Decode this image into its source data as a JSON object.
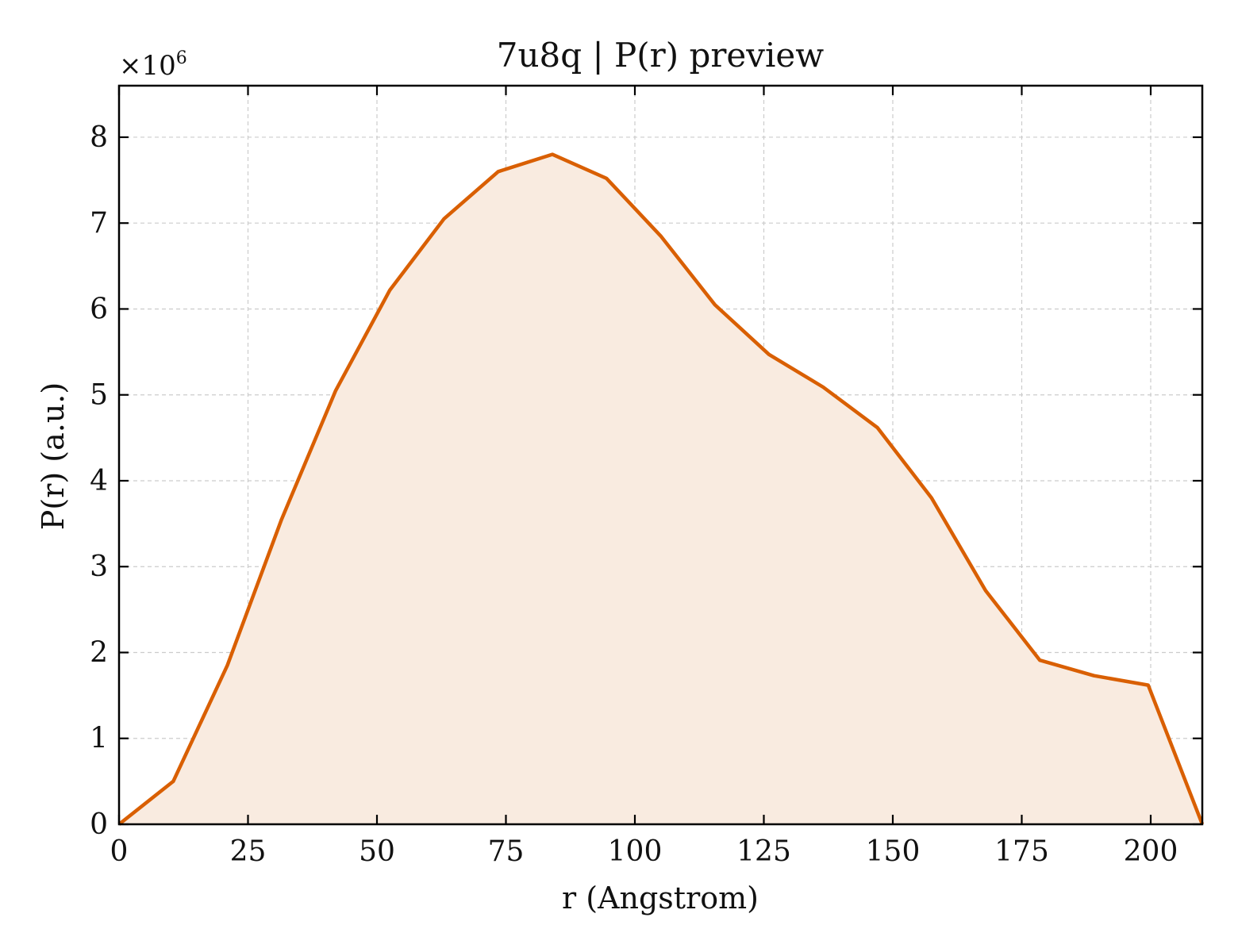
{
  "chart_data": {
    "type": "area",
    "title": "7u8q | P(r) preview",
    "xlabel": "r (Angstrom)",
    "ylabel": "P(r) (a.u.)",
    "y_multiplier": "×10",
    "y_multiplier_exponent": "6",
    "xlim": [
      0,
      210
    ],
    "ylim": [
      0,
      8.6
    ],
    "x_ticks": [
      0,
      25,
      50,
      75,
      100,
      125,
      150,
      175,
      200
    ],
    "y_ticks": [
      0,
      1,
      2,
      3,
      4,
      5,
      6,
      7,
      8
    ],
    "grid": true,
    "line_color": "#d95f02",
    "fill_color": "#f9ebe0",
    "series": [
      {
        "x": [
          0,
          10.5,
          21,
          31.5,
          42,
          52.5,
          63,
          73.5,
          84,
          94.5,
          105,
          115.5,
          126,
          136.5,
          147,
          157.5,
          168,
          178.5,
          189,
          199.5,
          210
        ],
        "y": [
          0,
          0.5,
          1.85,
          3.55,
          5.05,
          6.22,
          7.05,
          7.6,
          7.8,
          7.52,
          6.85,
          6.05,
          5.47,
          5.09,
          4.62,
          3.8,
          2.72,
          1.91,
          1.73,
          1.62,
          0
        ]
      }
    ]
  }
}
